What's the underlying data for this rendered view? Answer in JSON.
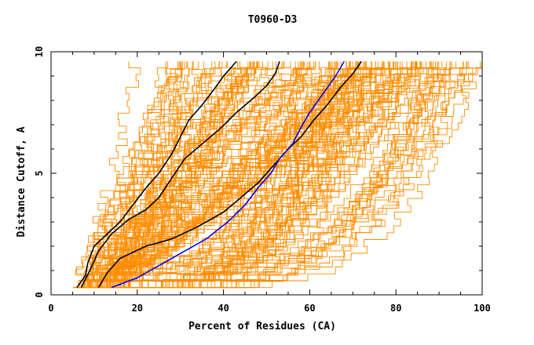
{
  "chart_data": {
    "type": "line",
    "title": "T0960-D3",
    "xlabel": "Percent of Residues (CA)",
    "ylabel": "Distance Cutoff, A",
    "xlim": [
      0,
      100
    ],
    "ylim": [
      0,
      10
    ],
    "x_ticks": [
      0,
      20,
      40,
      60,
      80,
      100
    ],
    "x_tick_labels": [
      "0",
      "20",
      "40",
      "60",
      "80",
      "100"
    ],
    "y_ticks": [
      0,
      5,
      10
    ],
    "y_tick_labels": [
      "0",
      "5",
      "10"
    ],
    "grid": false,
    "legend": "none",
    "colors": {
      "background_models": "#ff8c00",
      "highlight_black": "#000000",
      "highlight_blue": "#0000ff",
      "axes": "#000000"
    },
    "background_series_count": 150,
    "series": [
      {
        "color": "#000000",
        "points": [
          [
            6,
            0.3
          ],
          [
            8,
            0.8
          ],
          [
            8.5,
            1.3
          ],
          [
            10,
            2.0
          ],
          [
            13,
            2.5
          ],
          [
            16,
            3.0
          ],
          [
            19,
            3.7
          ],
          [
            22,
            4.4
          ],
          [
            25,
            5.0
          ],
          [
            28,
            5.8
          ],
          [
            30,
            6.5
          ],
          [
            32,
            7.2
          ],
          [
            35,
            7.8
          ],
          [
            38,
            8.5
          ],
          [
            40,
            9.0
          ],
          [
            43,
            9.6
          ]
        ]
      },
      {
        "color": "#000000",
        "points": [
          [
            7,
            0.3
          ],
          [
            9,
            1.0
          ],
          [
            11,
            1.8
          ],
          [
            14,
            2.5
          ],
          [
            18,
            3.1
          ],
          [
            22,
            3.5
          ],
          [
            25,
            4.0
          ],
          [
            28,
            4.8
          ],
          [
            31,
            5.6
          ],
          [
            35,
            6.2
          ],
          [
            39,
            6.8
          ],
          [
            43,
            7.5
          ],
          [
            47,
            8.1
          ],
          [
            50,
            8.6
          ],
          [
            52,
            9.1
          ],
          [
            53,
            9.6
          ]
        ]
      },
      {
        "color": "#000000",
        "points": [
          [
            11,
            0.3
          ],
          [
            13,
            0.9
          ],
          [
            16,
            1.5
          ],
          [
            22,
            2.0
          ],
          [
            28,
            2.3
          ],
          [
            34,
            2.8
          ],
          [
            40,
            3.4
          ],
          [
            44,
            4.0
          ],
          [
            48,
            4.6
          ],
          [
            52,
            5.4
          ],
          [
            55,
            6.0
          ],
          [
            58,
            6.5
          ],
          [
            61,
            7.2
          ],
          [
            64,
            7.8
          ],
          [
            67,
            8.5
          ],
          [
            70,
            9.1
          ],
          [
            72,
            9.6
          ]
        ]
      },
      {
        "color": "#0000ff",
        "points": [
          [
            14,
            0.3
          ],
          [
            20,
            0.7
          ],
          [
            25,
            1.2
          ],
          [
            30,
            1.7
          ],
          [
            36,
            2.3
          ],
          [
            41,
            3.0
          ],
          [
            45,
            3.7
          ],
          [
            48,
            4.4
          ],
          [
            51,
            5.0
          ],
          [
            53,
            5.6
          ],
          [
            56,
            6.2
          ],
          [
            58,
            6.9
          ],
          [
            60,
            7.5
          ],
          [
            62,
            8.0
          ],
          [
            64,
            8.5
          ],
          [
            66,
            9.0
          ],
          [
            68,
            9.6
          ]
        ]
      }
    ]
  }
}
